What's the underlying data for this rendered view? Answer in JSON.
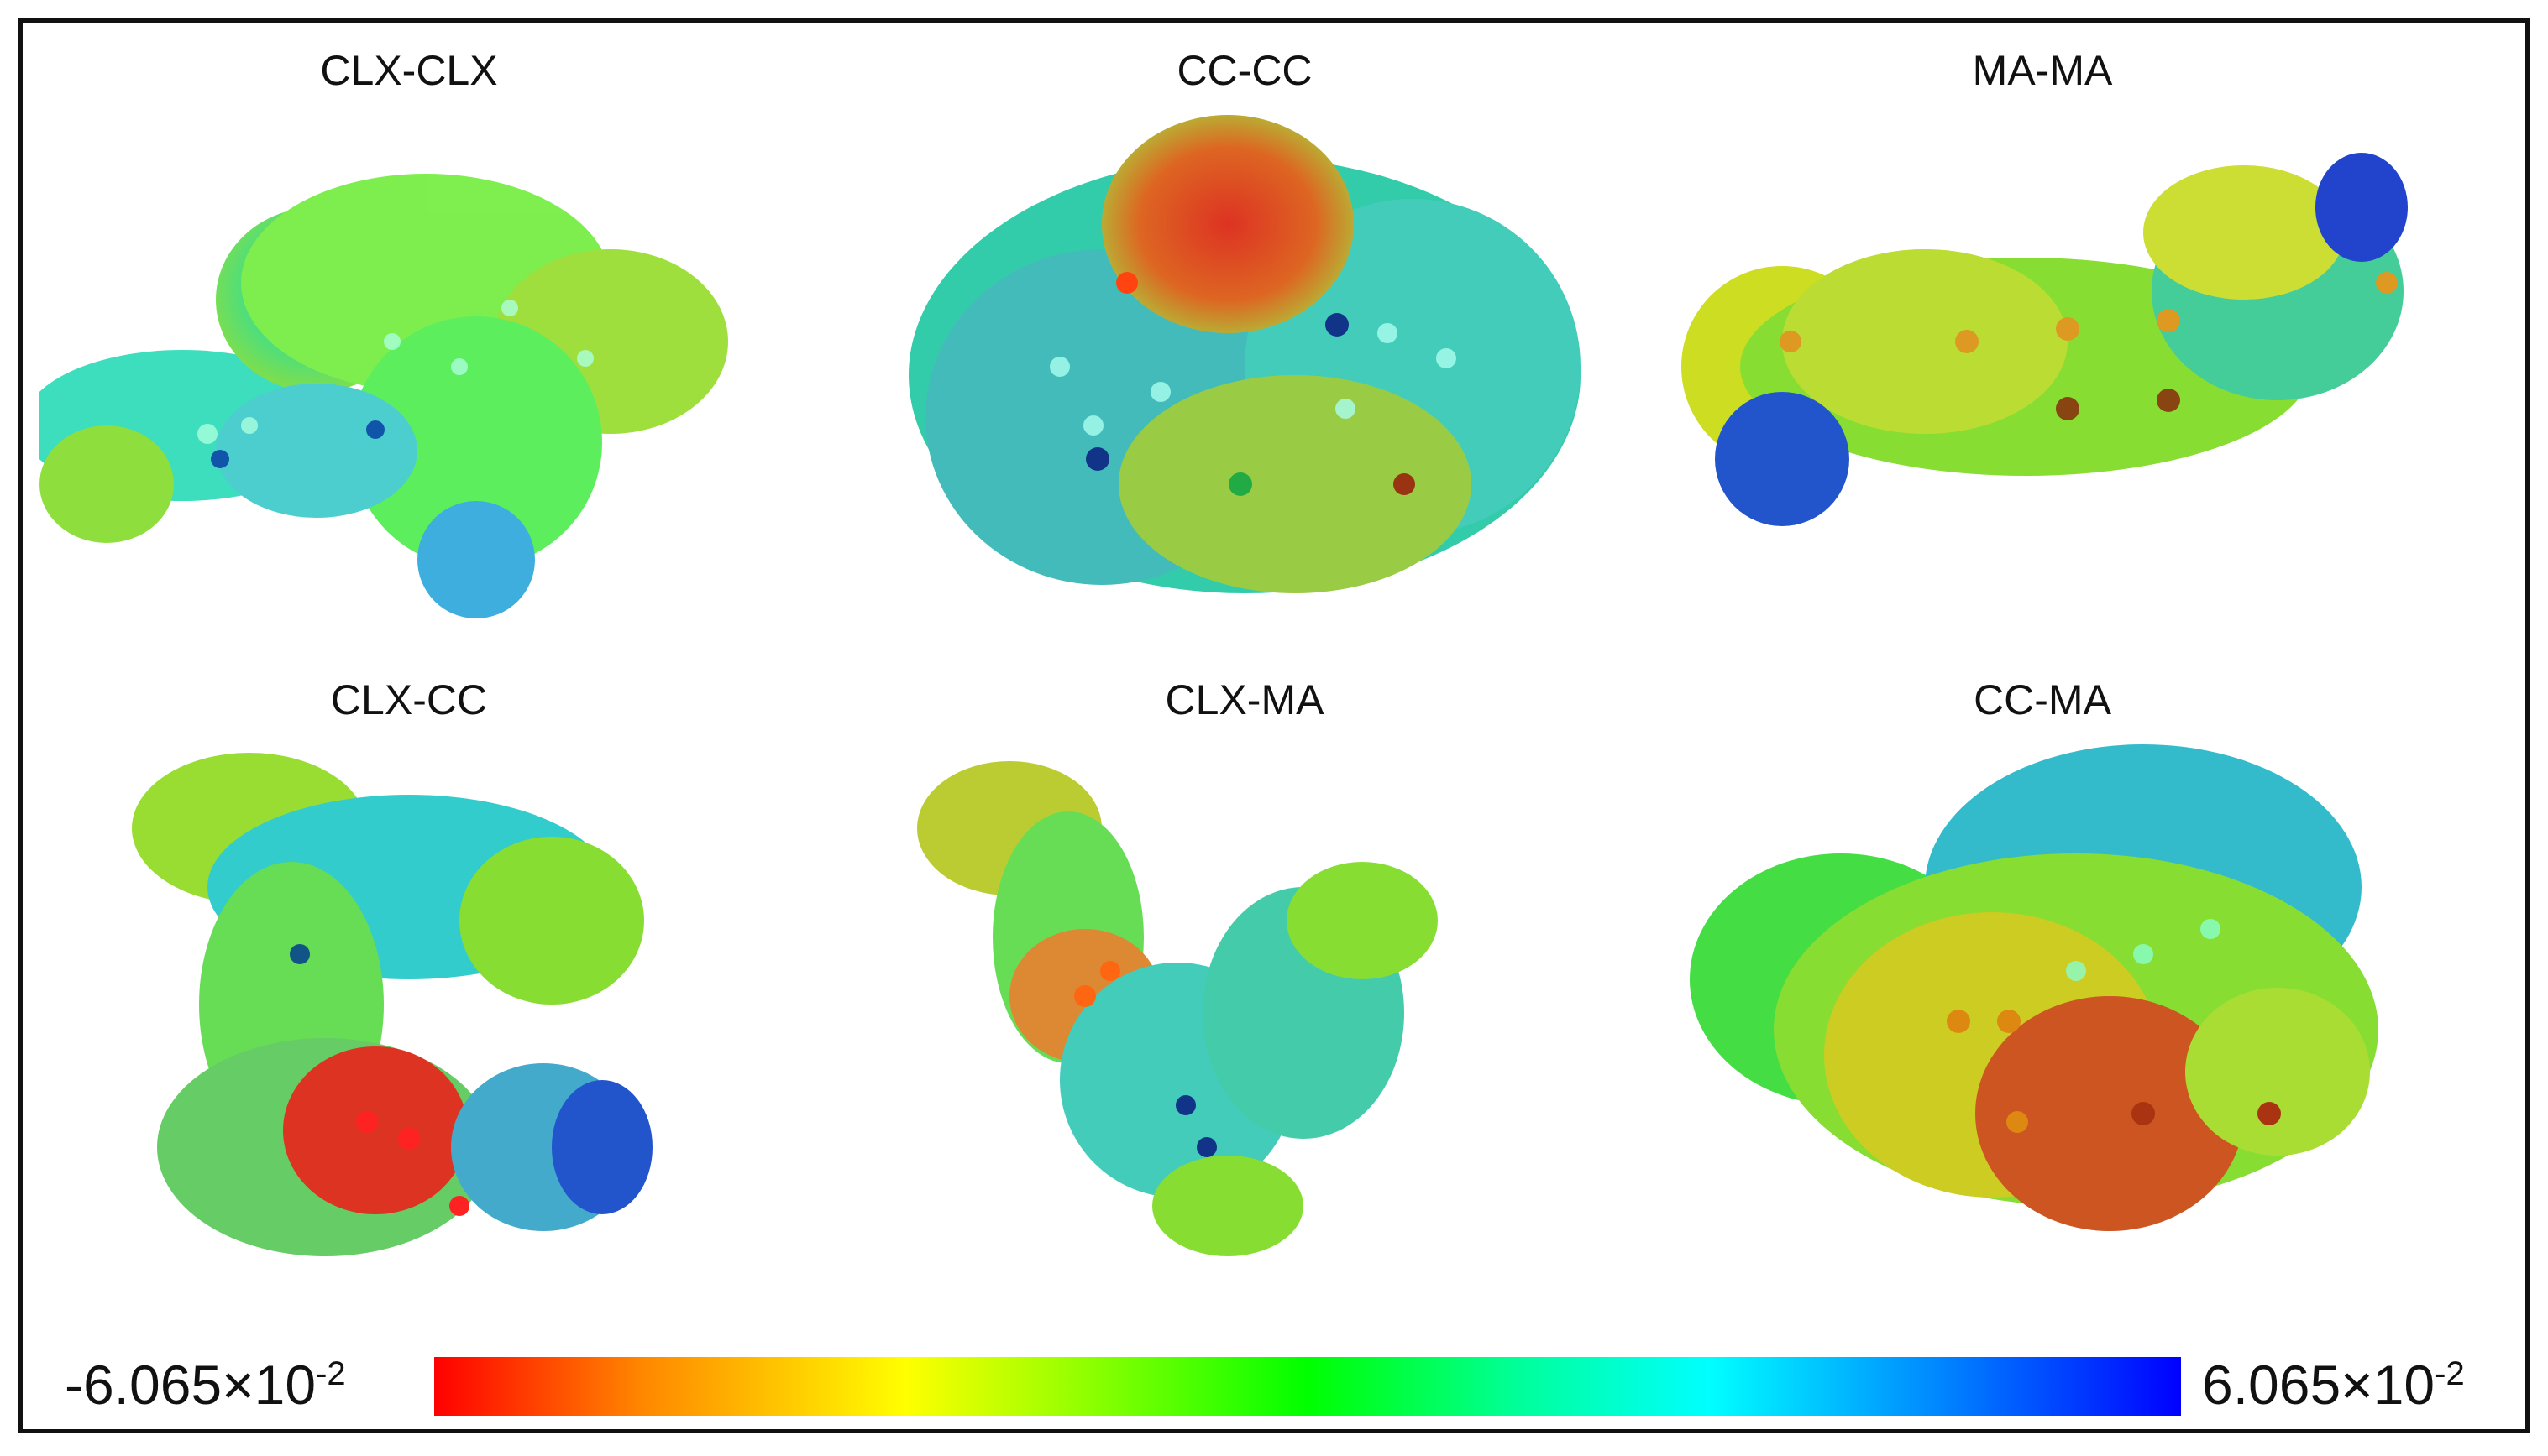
{
  "panels": [
    {
      "label": "CLX-CLX"
    },
    {
      "label": "CC-CC"
    },
    {
      "label": "MA-MA"
    },
    {
      "label": "CLX-CC"
    },
    {
      "label": "CLX-MA"
    },
    {
      "label": "CC-MA"
    }
  ],
  "color_scale": {
    "min_mantissa": "-6.065×10",
    "min_exponent": "-2",
    "max_mantissa": "6.065×10",
    "max_exponent": "-2",
    "colors": [
      "#ff0000",
      "#ff8800",
      "#ffff00",
      "#00ff00",
      "#00ffff",
      "#0000ff"
    ]
  }
}
